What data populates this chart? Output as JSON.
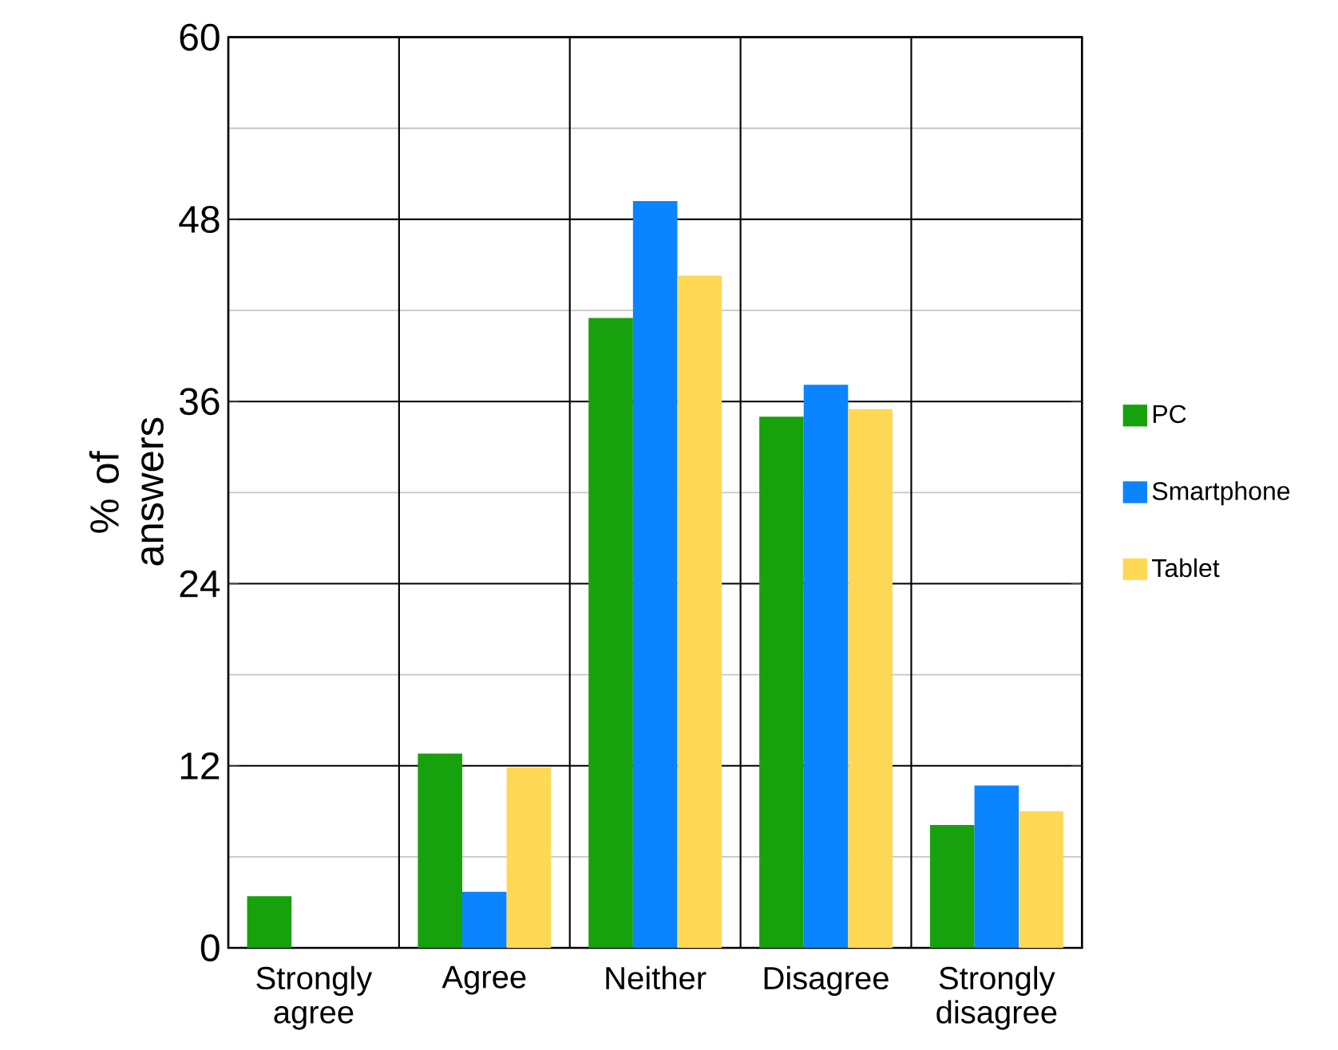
{
  "chart_data": {
    "type": "bar",
    "ylabel": "% of answers",
    "categories": [
      "Strongly agree",
      "Agree",
      "Neither",
      "Disagree",
      "Strongly disagree"
    ],
    "series": [
      {
        "name": "PC",
        "color": "#17a10c",
        "values": [
          3.4,
          12.8,
          41.5,
          35.0,
          8.1
        ]
      },
      {
        "name": "Smartphone",
        "color": "#0a84ff",
        "values": [
          0,
          3.7,
          49.2,
          37.1,
          10.7
        ]
      },
      {
        "name": "Tablet",
        "color": "#ffd855",
        "values": [
          0,
          11.9,
          44.3,
          35.5,
          9.0
        ]
      }
    ],
    "ylim": [
      0,
      60
    ],
    "yticks": [
      0,
      {
        "value": 6,
        "label": null
      },
      12,
      {
        "value": 18,
        "label": null
      },
      24,
      {
        "value": 30,
        "label": null
      },
      36,
      {
        "value": 42,
        "label": null
      },
      48,
      {
        "value": 54,
        "label": null
      },
      60
    ],
    "grid": true,
    "legend": "right"
  }
}
